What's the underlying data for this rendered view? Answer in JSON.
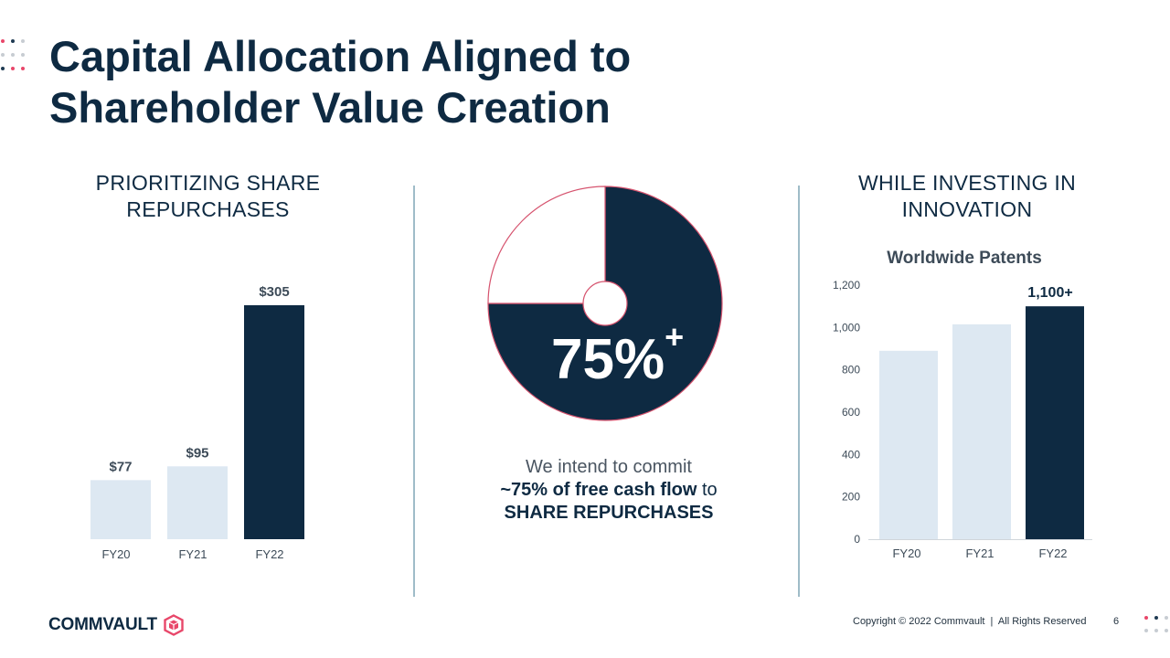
{
  "slide": {
    "title_line1": "Capital Allocation Aligned to",
    "title_line2": "Shareholder Value Creation",
    "page_number": "6",
    "copyright": "Copyright © 2022 Commvault  |  All Rights Reserved",
    "logo_text": "COMMVAULT"
  },
  "left": {
    "heading_line1": "PRIORITIZING SHARE",
    "heading_line2": "REPURCHASES"
  },
  "middle": {
    "pct_value": "75%",
    "pct_suffix": "+",
    "caption_line1": "We intend to commit",
    "caption_line2_bold": "~75% of free cash flow",
    "caption_line2_rest": " to",
    "caption_line3": "SHARE REPURCHASES"
  },
  "right": {
    "heading_line1": "WHILE INVESTING IN",
    "heading_line2": "INNOVATION",
    "chart_title": "Worldwide Patents"
  },
  "colors": {
    "navy": "#0e2a42",
    "light_bar": "#dde8f2",
    "pie_outline": "#d6536e",
    "divider": "#9fbcc8",
    "accent_pink": "#e8476a"
  },
  "chart_data": [
    {
      "type": "bar",
      "categories": [
        "FY20",
        "FY21",
        "FY22"
      ],
      "values": [
        77,
        95,
        305
      ],
      "data_labels": [
        "$77",
        "$95",
        "$305"
      ],
      "highlight": "FY22",
      "grid": false,
      "ylim": [
        0,
        305
      ]
    },
    {
      "type": "pie",
      "values": [
        75,
        25
      ],
      "labels": [
        "75%+",
        ""
      ],
      "colors": [
        "#0e2a42",
        "#ffffff"
      ]
    },
    {
      "type": "bar",
      "title": "Worldwide Patents",
      "categories": [
        "FY20",
        "FY21",
        "FY22"
      ],
      "values": [
        890,
        1015,
        1100
      ],
      "data_labels": [
        "",
        "",
        "1,100+"
      ],
      "highlight": "FY22",
      "ylim": [
        0,
        1200
      ],
      "yticks": [
        0,
        200,
        400,
        600,
        800,
        1000,
        1200
      ],
      "ytick_labels": [
        "0",
        "200",
        "400",
        "600",
        "800",
        "1,000",
        "1,200"
      ],
      "grid": false
    }
  ]
}
